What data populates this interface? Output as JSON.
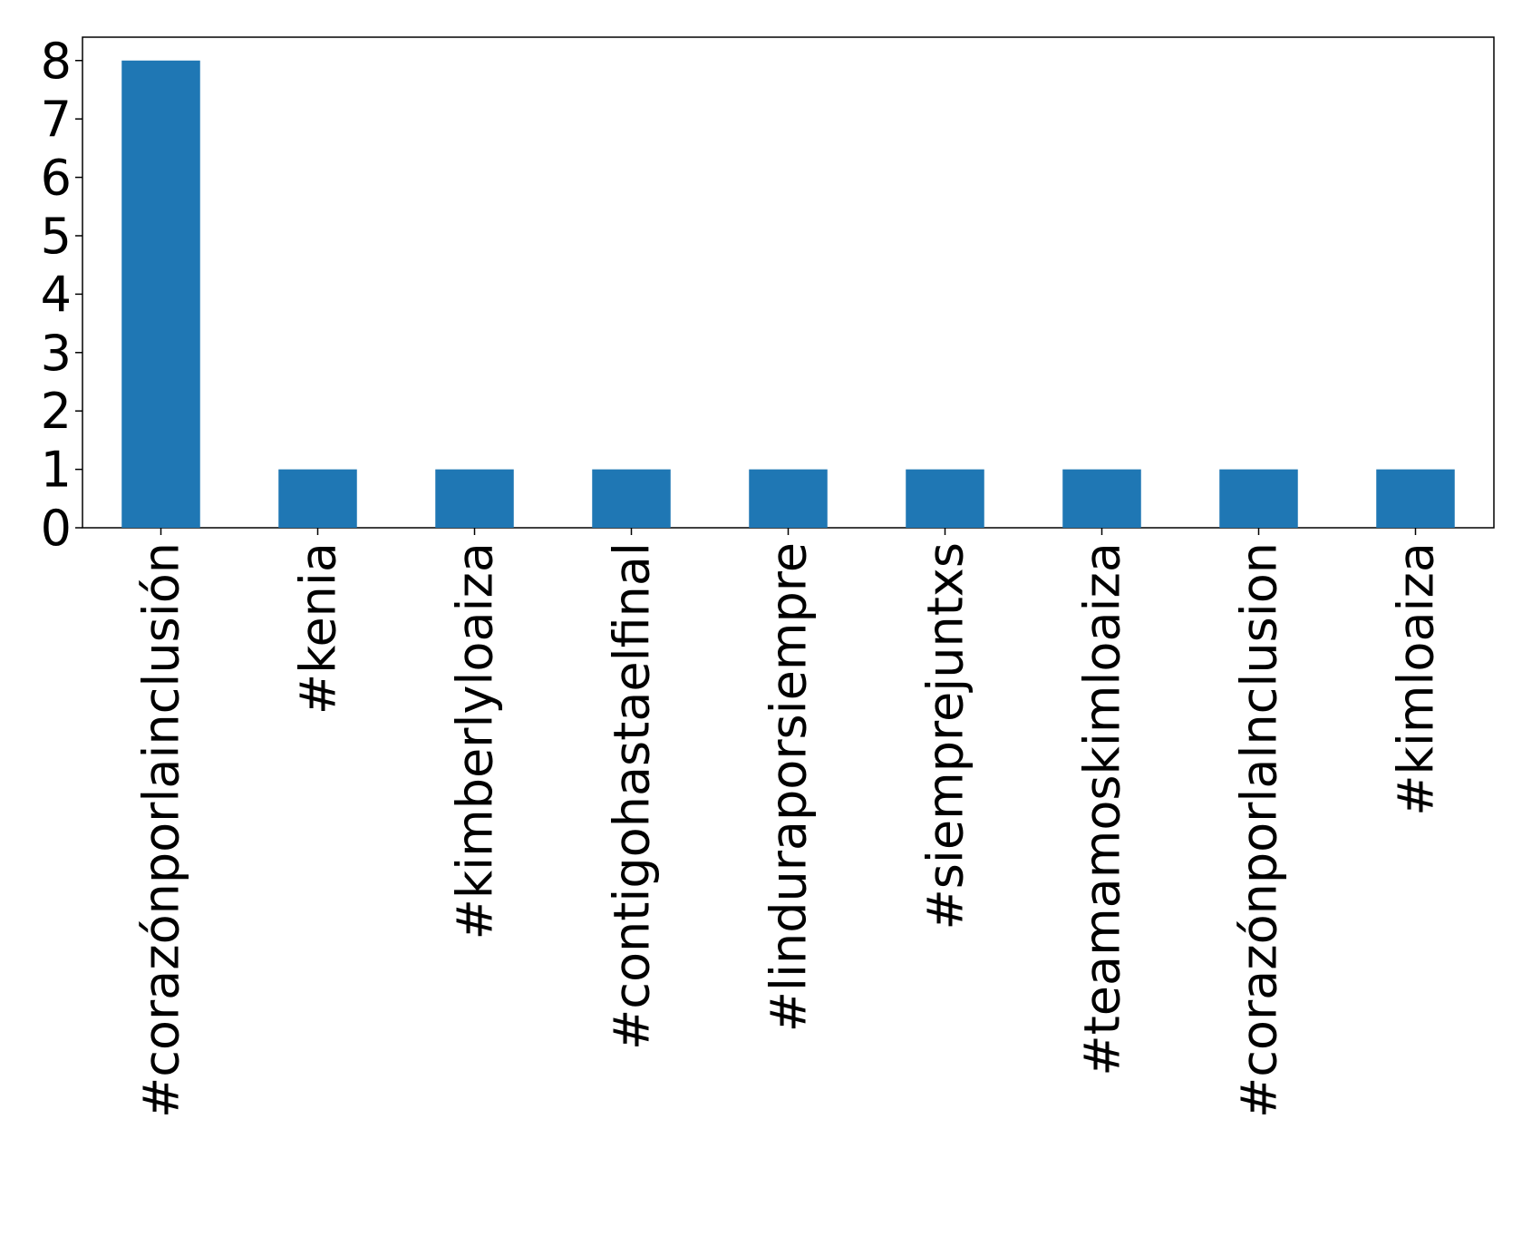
{
  "chart_data": {
    "type": "bar",
    "categories": [
      "#corazónporlainclusión",
      "#kenia",
      "#kimberlyloaiza",
      "#contigohastaelfinal",
      "#linduraporsiempre",
      "#siemprejuntxs",
      "#teamamoskimloaiza",
      "#corazónporlalnclusion",
      "#kimloaiza"
    ],
    "values": [
      8,
      1,
      1,
      1,
      1,
      1,
      1,
      1,
      1
    ],
    "color": "#1f77b4",
    "ylim": [
      0,
      8.4
    ],
    "yticks": [
      0,
      1,
      2,
      3,
      4,
      5,
      6,
      7,
      8
    ]
  }
}
